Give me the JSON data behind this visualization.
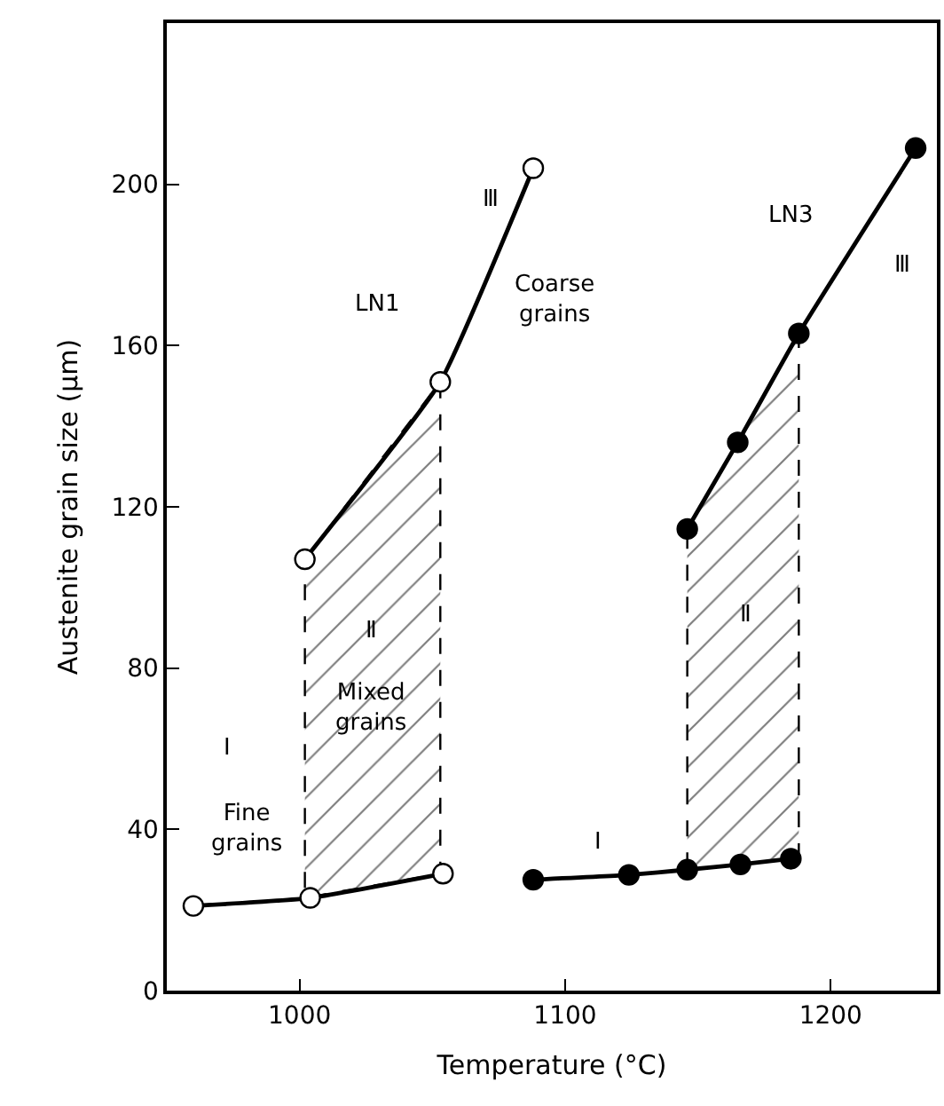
{
  "chart_data": {
    "type": "line",
    "xlabel": "Temperature (°C)",
    "ylabel": "Austenite grain size (μm)",
    "xlim": [
      950,
      1240
    ],
    "ylim": [
      0,
      240
    ],
    "xticks": [
      1000,
      1100,
      1200
    ],
    "yticks": [
      0,
      40,
      80,
      120,
      160,
      200
    ],
    "line_style": "solid",
    "series": [
      {
        "color": "#000000",
        "marker": "circle-open",
        "x": [
          960,
          1004,
          1054
        ],
        "values": [
          21,
          23,
          29
        ]
      },
      {
        "color": "#000000",
        "marker": "circle-open",
        "x": [
          1002,
          1053,
          1088
        ],
        "values": [
          107,
          151,
          204
        ],
        "lower": [
          23,
          29,
          null
        ],
        "upper": [
          107,
          151,
          null
        ]
      },
      {
        "color": "#000000",
        "marker": "circle",
        "x": [
          1088,
          1124,
          1146,
          1166,
          1185
        ],
        "values": [
          27.5,
          28.7,
          30,
          31.3,
          32.7
        ]
      },
      {
        "color": "#000000",
        "marker": "circle",
        "x": [
          1146,
          1165,
          1188,
          1232
        ],
        "values": [
          114.5,
          136,
          163,
          209
        ],
        "lower": [
          30,
          31.3,
          33,
          null
        ],
        "upper": [
          114.5,
          136,
          163,
          null
        ]
      }
    ],
    "annotations": [
      "LN1",
      "Ⅲ",
      "Coarse\ngrains",
      "Ⅱ",
      "Mixed\ngrains",
      "Ⅰ",
      "Fine\ngrains",
      "LN3",
      "Ⅲ",
      "Ⅰ",
      "Ⅱ"
    ]
  }
}
